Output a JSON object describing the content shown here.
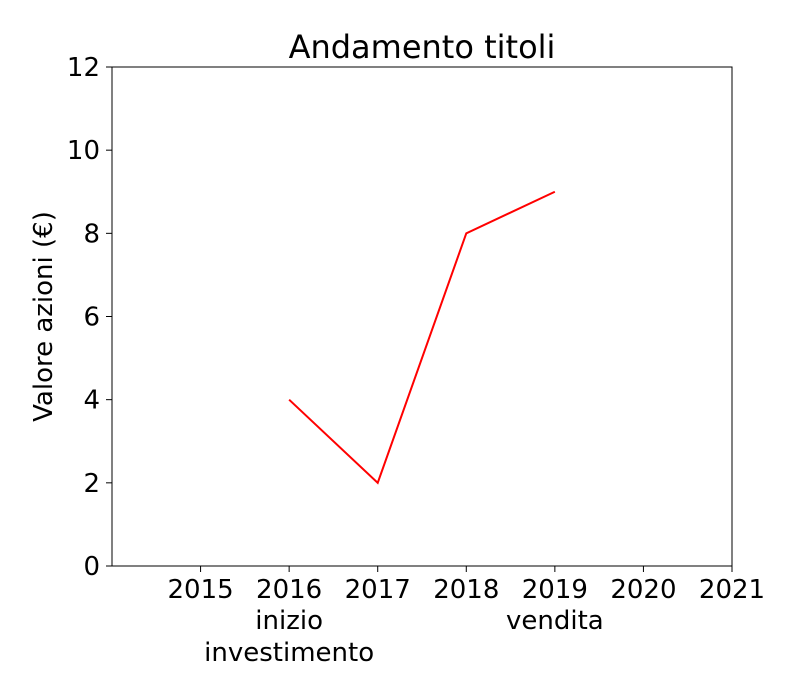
{
  "chart_data": {
    "type": "line",
    "title": "Andamento titoli",
    "xlabel": "",
    "ylabel": "Valore azioni (€)",
    "xlim": [
      2014,
      2021
    ],
    "ylim": [
      0,
      12
    ],
    "x_ticks": [
      2015,
      2016,
      2017,
      2018,
      2019,
      2020,
      2021
    ],
    "y_ticks": [
      0,
      2,
      4,
      6,
      8,
      10,
      12
    ],
    "grid": false,
    "series": [
      {
        "color": "#ff0000",
        "x": [
          2016,
          2017,
          2018,
          2019
        ],
        "y": [
          4,
          2,
          8,
          9
        ]
      }
    ],
    "annotations": [
      {
        "x": 2016,
        "lines": [
          "inizio",
          "investimento"
        ]
      },
      {
        "x": 2019,
        "lines": [
          "vendita"
        ]
      }
    ]
  }
}
